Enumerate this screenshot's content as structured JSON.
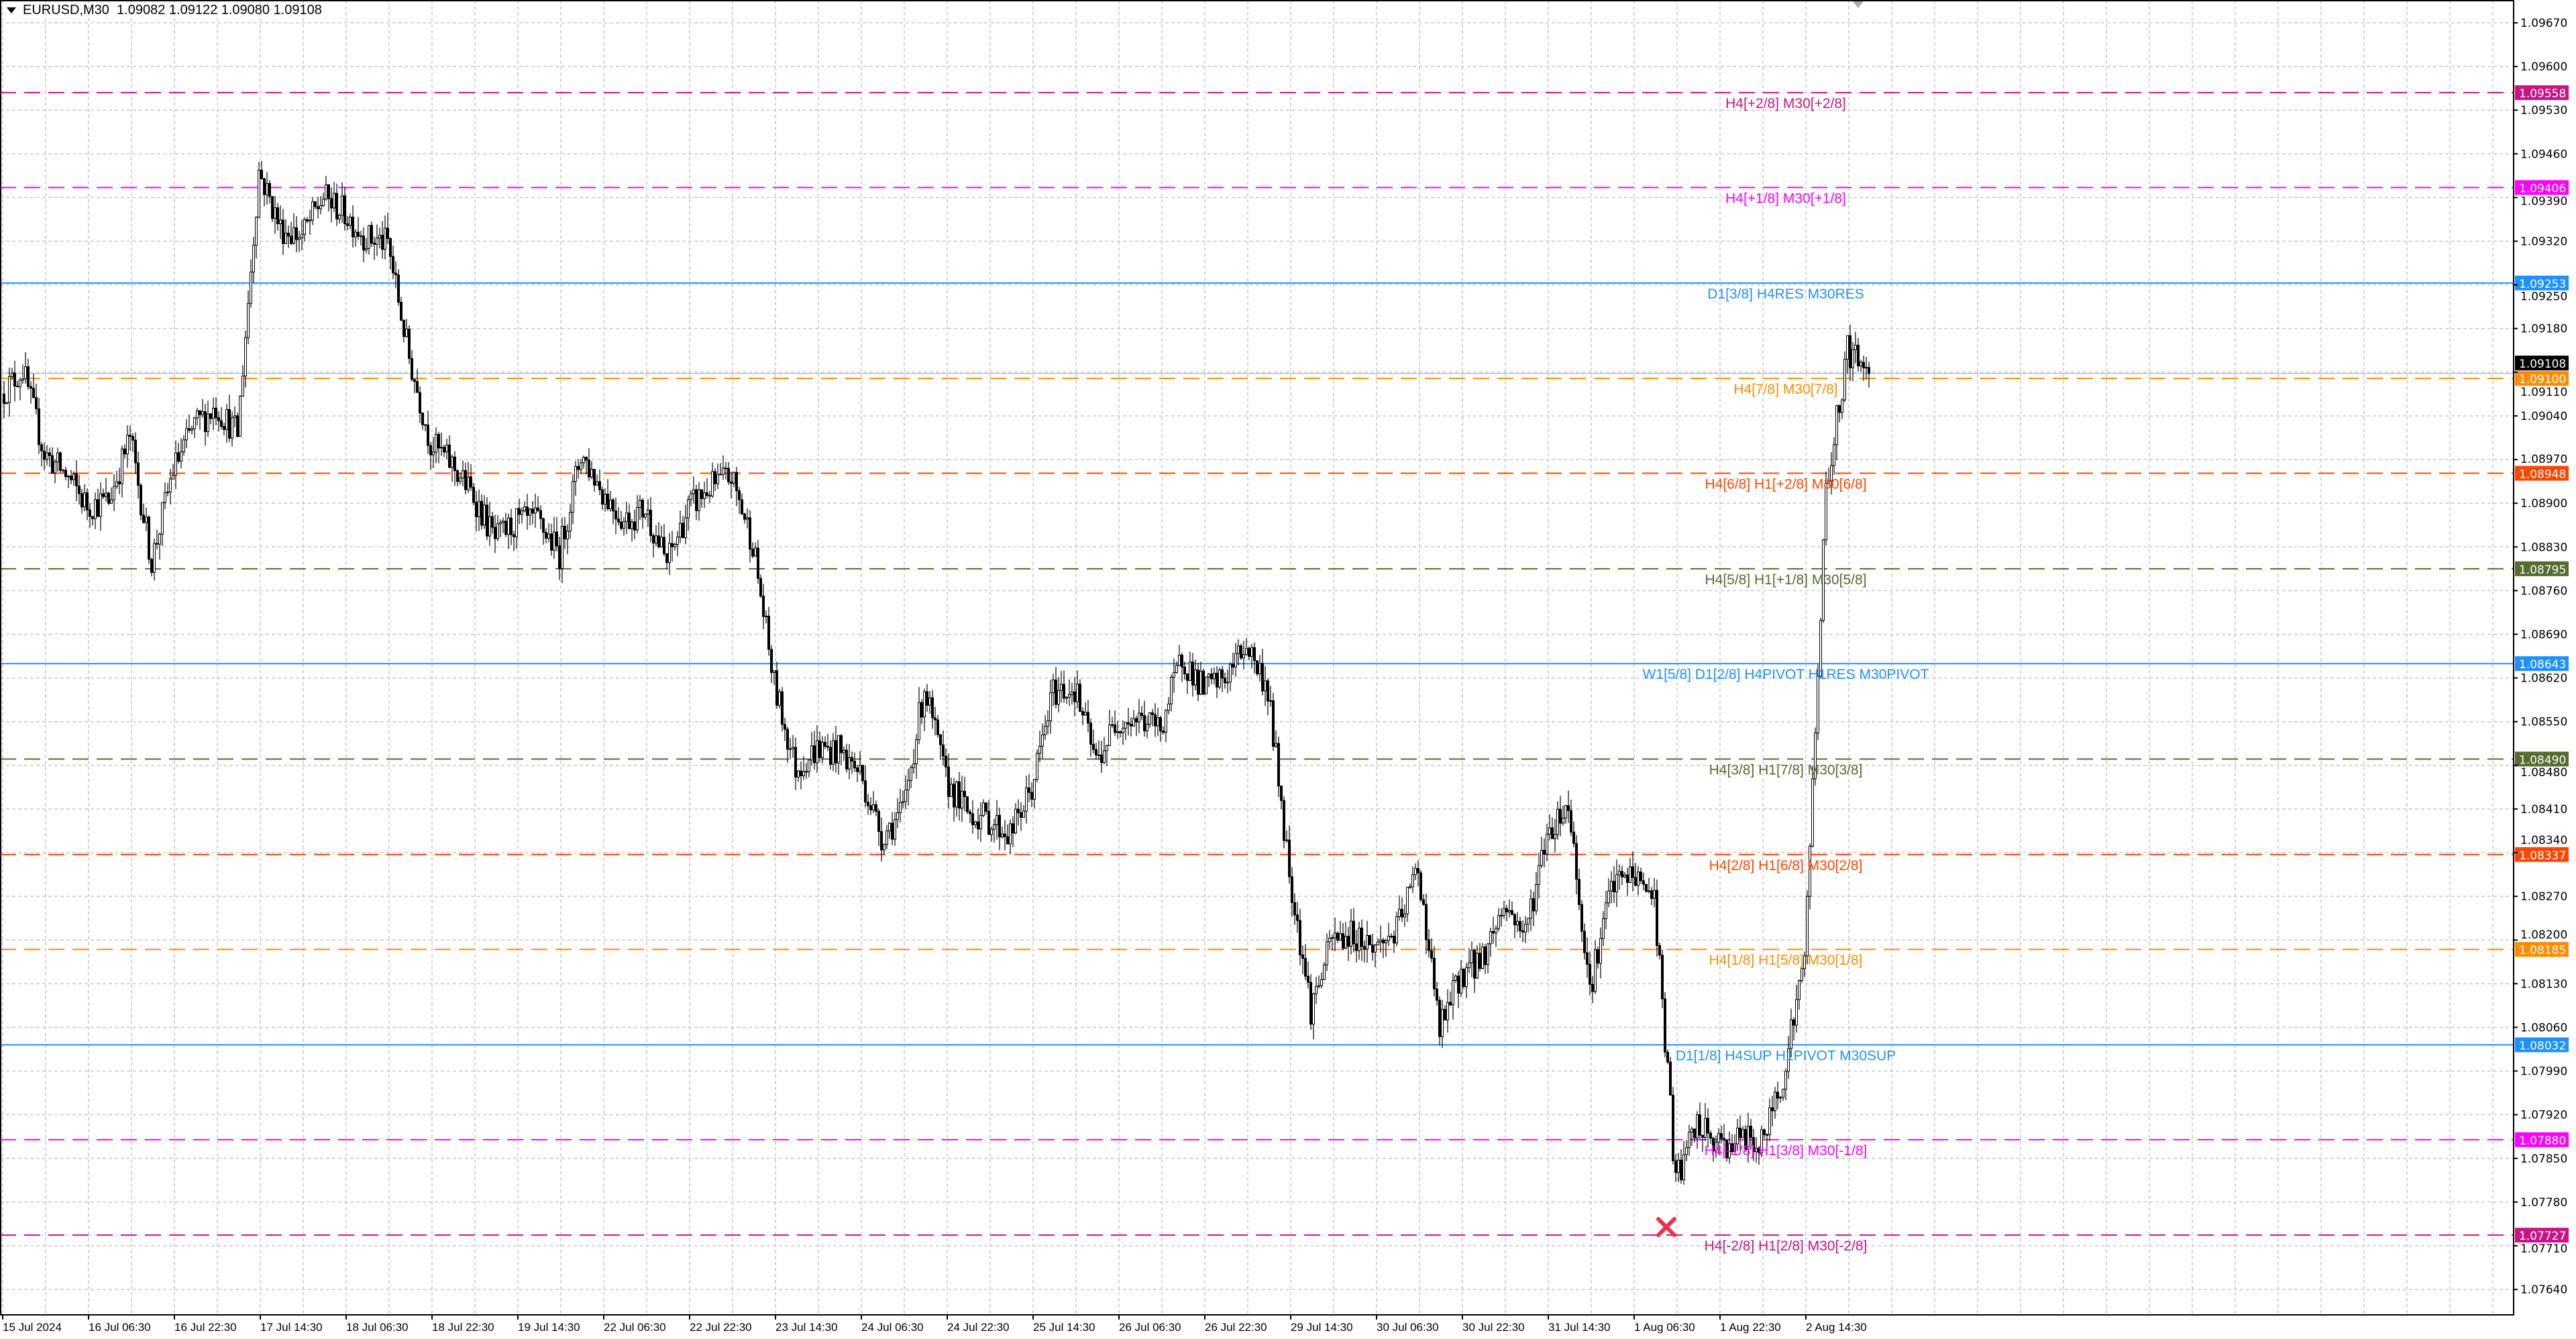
{
  "header": {
    "symbol": "EURUSD,M30",
    "ohlc": "1.09082 1.09122 1.09080 1.09108"
  },
  "chart_data": {
    "type": "candlestick",
    "symbol": "EURUSD",
    "timeframe": "M30",
    "ylim": [
      1.076,
      1.097
    ],
    "grid": true,
    "current_price": 1.09108,
    "current_price_label": "1.09108",
    "sample_interval_bars": 8,
    "approx_closes": [
      1.09075,
      1.09114,
      1.0898,
      1.08946,
      1.08896,
      1.08904,
      1.09006,
      1.08806,
      1.08954,
      1.09025,
      1.09054,
      1.09012,
      1.09433,
      1.09341,
      1.09328,
      1.09391,
      1.09365,
      1.09325,
      1.09317,
      1.09133,
      1.08996,
      1.08962,
      1.08912,
      1.08841,
      1.0887,
      1.0887,
      1.0882,
      1.0898,
      1.0892,
      1.08872,
      1.08891,
      1.08804,
      1.08891,
      1.08925,
      1.08943,
      1.08838,
      1.08609,
      1.08475,
      1.08506,
      1.08504,
      1.08469,
      1.08367,
      1.08406,
      1.08606,
      1.08456,
      1.08406,
      1.08393,
      1.08369,
      1.08443,
      1.08598,
      1.08604,
      1.08485,
      1.08554,
      1.08554,
      1.0854,
      1.08654,
      1.08601,
      1.08619,
      1.08675,
      1.08601,
      1.08311,
      1.0809,
      1.08201,
      1.08209,
      1.08188,
      1.08214,
      1.08317,
      1.08056,
      1.08146,
      1.08172,
      1.08256,
      1.08211,
      1.08372,
      1.08419,
      1.08122,
      1.08285,
      1.08306,
      1.08269,
      1.07814,
      1.07903,
      1.07869,
      1.07882,
      1.07872,
      1.07985,
      1.08169,
      1.08917,
      1.09146,
      1.09108
    ],
    "price_ticks": [
      "1.09670",
      "1.09600",
      "1.09530",
      "1.09460",
      "1.09390",
      "1.09320",
      "1.09250",
      "1.09180",
      "1.09110",
      "1.09040",
      "1.08970",
      "1.08900",
      "1.08830",
      "1.08760",
      "1.08690",
      "1.08620",
      "1.08550",
      "1.08480",
      "1.08410",
      "1.08340",
      "1.08270",
      "1.08200",
      "1.08130",
      "1.08060",
      "1.07990",
      "1.07920",
      "1.07850",
      "1.07780",
      "1.07710",
      "1.07640"
    ],
    "time_ticks": [
      "15 Jul 2024",
      "16 Jul 06:30",
      "16 Jul 22:30",
      "17 Jul 14:30",
      "18 Jul 06:30",
      "18 Jul 22:30",
      "19 Jul 14:30",
      "22 Jul 06:30",
      "22 Jul 22:30",
      "23 Jul 14:30",
      "24 Jul 06:30",
      "24 Jul 22:30",
      "25 Jul 14:30",
      "26 Jul 06:30",
      "26 Jul 22:30",
      "29 Jul 14:30",
      "30 Jul 06:30",
      "30 Jul 22:30",
      "31 Jul 14:30",
      "1 Aug 06:30",
      "1 Aug 22:30",
      "2 Aug 14:30"
    ],
    "levels": [
      {
        "price": 1.09558,
        "price_label": "1.09558",
        "text": "H4[+2/8] M30[+2/8]",
        "color": "#c71585",
        "style": "dashed"
      },
      {
        "price": 1.09406,
        "price_label": "1.09406",
        "text": "H4[+1/8] M30[+1/8]",
        "color": "#ff00ff",
        "style": "dashed"
      },
      {
        "price": 1.09253,
        "price_label": "1.09253",
        "text": "D1[3/8] H4RES M30RES",
        "color": "#1e90ff",
        "style": "solid"
      },
      {
        "price": 1.091,
        "price_label": "1.09100",
        "text": "H4[7/8] M30[7/8]",
        "color": "#ff8c00",
        "style": "dashed"
      },
      {
        "price": 1.08948,
        "price_label": "1.08948",
        "text": "H4[6/8] H1[+2/8] M30[6/8]",
        "color": "#ff4500",
        "style": "dashed"
      },
      {
        "price": 1.08795,
        "price_label": "1.08795",
        "text": "H4[5/8] H1[+1/8] M30[5/8]",
        "color": "#556b2f",
        "style": "dashed"
      },
      {
        "price": 1.08643,
        "price_label": "1.08643",
        "text": "W1[5/8] D1[2/8] H4PIVOT H1RES M30PIVOT",
        "color": "#1e90ff",
        "style": "solid"
      },
      {
        "price": 1.0849,
        "price_label": "1.08490",
        "text": "H4[3/8] H1[7/8] M30[3/8]",
        "color": "#556b2f",
        "style": "dashed"
      },
      {
        "price": 1.08337,
        "price_label": "1.08337",
        "text": "H4[2/8] H1[6/8] M30[2/8]",
        "color": "#ff4500",
        "style": "dashed"
      },
      {
        "price": 1.08185,
        "price_label": "1.08185",
        "text": "H4[1/8] H1[5/8] M30[1/8]",
        "color": "#ff8c00",
        "style": "dashed"
      },
      {
        "price": 1.08032,
        "price_label": "1.08032",
        "text": "D1[1/8] H4SUP H1PIVOT M30SUP",
        "color": "#1e90ff",
        "style": "solid"
      },
      {
        "price": 1.0788,
        "price_label": "1.07880",
        "text": "H4[-1/8] H1[3/8] M30[-1/8]",
        "color": "#ff00ff",
        "style": "dashed"
      },
      {
        "price": 1.07727,
        "price_label": "1.07727",
        "text": "H4[-2/8] H1[2/8] M30[-2/8]",
        "color": "#c71585",
        "style": "dashed"
      }
    ],
    "marker": {
      "icon": "x-mark-icon",
      "price": 1.0774,
      "color": "#e8334a"
    }
  }
}
